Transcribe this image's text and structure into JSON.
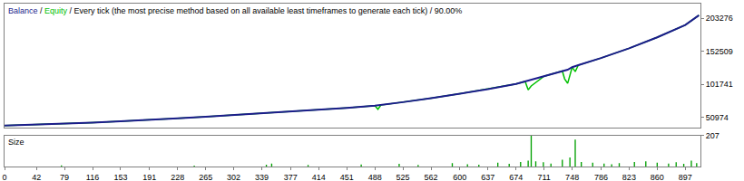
{
  "chart_data": [
    {
      "type": "line",
      "title": "Balance / Equity / Every tick (the most precise method based on all available least timeframes to generate each tick) / 90.00%",
      "x": [
        0,
        42,
        79,
        116,
        153,
        191,
        228,
        265,
        302,
        339,
        377,
        414,
        451,
        488,
        492,
        496,
        525,
        562,
        600,
        637,
        674,
        686,
        690,
        694,
        711,
        735,
        738,
        742,
        748,
        752,
        756,
        786,
        823,
        860,
        897,
        915
      ],
      "series": [
        {
          "name": "Equity",
          "color": "#00c000",
          "values": [
            38000,
            39500,
            41000,
            42500,
            44500,
            46500,
            49000,
            51500,
            54000,
            56500,
            59000,
            62000,
            65000,
            68500,
            63000,
            69500,
            74000,
            80000,
            87000,
            94000,
            102000,
            106000,
            93000,
            99000,
            114000,
            122000,
            110000,
            103000,
            128000,
            121000,
            131000,
            142000,
            157000,
            174000,
            193000,
            208000
          ]
        },
        {
          "name": "Balance",
          "color": "#1c1c8c",
          "values": [
            38000,
            39500,
            41000,
            42500,
            44500,
            46500,
            49000,
            51500,
            54000,
            56500,
            59000,
            62000,
            65000,
            68500,
            69000,
            69500,
            74000,
            80000,
            87000,
            94000,
            102000,
            106000,
            107000,
            108000,
            114000,
            122000,
            123000,
            124000,
            128000,
            130000,
            131000,
            142000,
            157000,
            174000,
            193000,
            208000
          ]
        }
      ],
      "xlim": [
        0,
        917
      ],
      "ylim": [
        35000,
        226000
      ],
      "yticks": [
        50974,
        101741,
        152509,
        203276
      ],
      "grid": false,
      "tick_labels": "y"
    },
    {
      "type": "bar",
      "title": "Size",
      "x": [
        75,
        250,
        345,
        352,
        400,
        470,
        520,
        545,
        590,
        610,
        625,
        650,
        665,
        680,
        690,
        694,
        700,
        710,
        720,
        735,
        745,
        752,
        760,
        775,
        790,
        800,
        810,
        830,
        845,
        860,
        875,
        885,
        895,
        905,
        912
      ],
      "values": [
        8,
        6,
        12,
        20,
        10,
        14,
        18,
        10,
        22,
        15,
        12,
        25,
        18,
        30,
        40,
        207,
        35,
        28,
        20,
        45,
        60,
        180,
        30,
        25,
        20,
        15,
        22,
        30,
        35,
        25,
        20,
        28,
        18,
        40,
        22
      ],
      "color": "#00a000",
      "xlim": [
        0,
        917
      ],
      "xticks": [
        0,
        42,
        79,
        116,
        153,
        191,
        228,
        265,
        302,
        339,
        377,
        414,
        451,
        488,
        525,
        562,
        600,
        637,
        674,
        711,
        748,
        786,
        823,
        860,
        897
      ],
      "ylim": [
        0,
        207
      ],
      "yticks": [
        207
      ],
      "grid": false
    }
  ]
}
